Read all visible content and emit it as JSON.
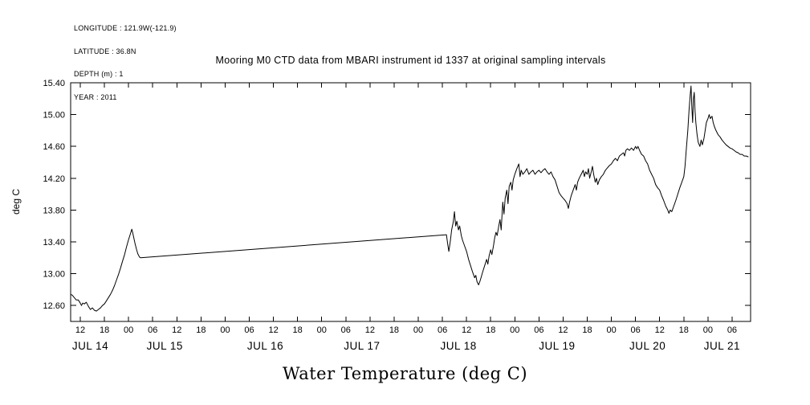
{
  "metadata": {
    "lines": [
      "LONGITUDE : 121.9W(-121.9)",
      "LATITUDE : 36.8N",
      "DEPTH (m) : 1",
      "YEAR : 2011"
    ]
  },
  "title": "Mooring M0 CTD data from MBARI instrument id 1337 at original sampling intervals",
  "bottom_title": "Water Temperature (deg C)",
  "colors": {
    "line": "#000000",
    "background": "#ffffff"
  },
  "chart_data": {
    "type": "line",
    "title": "Mooring M0 CTD data from MBARI instrument id 1337 at original sampling intervals",
    "xlabel": "Water Temperature (deg C)",
    "ylabel": "deg C",
    "x_units": "hours since JUL 14 2011 00:00",
    "xlim_hours": [
      9.6,
      178.6
    ],
    "ylim": [
      12.4,
      15.4
    ],
    "grid": false,
    "legend": "none",
    "y_ticks": [
      12.6,
      13.0,
      13.4,
      13.8,
      14.2,
      14.6,
      15.0,
      15.4
    ],
    "x_ticks": [
      {
        "hour": 12,
        "label": "12"
      },
      {
        "hour": 18,
        "label": "18"
      },
      {
        "hour": 24,
        "label": "00"
      },
      {
        "hour": 30,
        "label": "06"
      },
      {
        "hour": 36,
        "label": "12"
      },
      {
        "hour": 42,
        "label": "18"
      },
      {
        "hour": 48,
        "label": "00"
      },
      {
        "hour": 54,
        "label": "06"
      },
      {
        "hour": 60,
        "label": "12"
      },
      {
        "hour": 66,
        "label": "18"
      },
      {
        "hour": 72,
        "label": "00"
      },
      {
        "hour": 78,
        "label": "06"
      },
      {
        "hour": 84,
        "label": "12"
      },
      {
        "hour": 90,
        "label": "18"
      },
      {
        "hour": 96,
        "label": "00"
      },
      {
        "hour": 102,
        "label": "06"
      },
      {
        "hour": 108,
        "label": "12"
      },
      {
        "hour": 114,
        "label": "18"
      },
      {
        "hour": 120,
        "label": "00"
      },
      {
        "hour": 126,
        "label": "06"
      },
      {
        "hour": 132,
        "label": "12"
      },
      {
        "hour": 138,
        "label": "18"
      },
      {
        "hour": 144,
        "label": "00"
      },
      {
        "hour": 150,
        "label": "06"
      },
      {
        "hour": 156,
        "label": "12"
      },
      {
        "hour": 162,
        "label": "18"
      },
      {
        "hour": 168,
        "label": "00"
      },
      {
        "hour": 174,
        "label": "06"
      }
    ],
    "day_labels": [
      {
        "label": "JUL 14",
        "center_hour": 14.5
      },
      {
        "label": "JUL 15",
        "center_hour": 33
      },
      {
        "label": "JUL 16",
        "center_hour": 58
      },
      {
        "label": "JUL 17",
        "center_hour": 82
      },
      {
        "label": "JUL 18",
        "center_hour": 106
      },
      {
        "label": "JUL 19",
        "center_hour": 130.5
      },
      {
        "label": "JUL 20",
        "center_hour": 153
      },
      {
        "label": "JUL 21",
        "center_hour": 171.5
      }
    ],
    "series": [
      {
        "name": "water_temperature_deg_C",
        "note": "straight segment between hours 27 and 103 is a data gap",
        "points": [
          [
            9.6,
            12.74
          ],
          [
            10,
            12.73
          ],
          [
            10.5,
            12.7
          ],
          [
            11,
            12.67
          ],
          [
            11.5,
            12.67
          ],
          [
            12,
            12.63
          ],
          [
            12.3,
            12.6
          ],
          [
            12.6,
            12.63
          ],
          [
            13,
            12.62
          ],
          [
            13.5,
            12.64
          ],
          [
            14,
            12.59
          ],
          [
            14.5,
            12.55
          ],
          [
            15,
            12.57
          ],
          [
            15.5,
            12.54
          ],
          [
            16,
            12.53
          ],
          [
            16.5,
            12.55
          ],
          [
            17,
            12.57
          ],
          [
            17.5,
            12.6
          ],
          [
            18,
            12.62
          ],
          [
            18.5,
            12.66
          ],
          [
            19,
            12.7
          ],
          [
            19.5,
            12.74
          ],
          [
            20,
            12.79
          ],
          [
            20.5,
            12.85
          ],
          [
            21,
            12.92
          ],
          [
            21.5,
            12.99
          ],
          [
            22,
            13.07
          ],
          [
            22.5,
            13.16
          ],
          [
            23,
            13.24
          ],
          [
            23.5,
            13.34
          ],
          [
            24,
            13.43
          ],
          [
            24.5,
            13.51
          ],
          [
            24.8,
            13.56
          ],
          [
            25,
            13.52
          ],
          [
            25.3,
            13.45
          ],
          [
            25.6,
            13.38
          ],
          [
            26,
            13.3
          ],
          [
            26.3,
            13.25
          ],
          [
            26.7,
            13.21
          ],
          [
            27,
            13.2
          ],
          [
            103,
            13.49
          ],
          [
            103.3,
            13.38
          ],
          [
            103.6,
            13.28
          ],
          [
            104,
            13.42
          ],
          [
            104.3,
            13.55
          ],
          [
            104.7,
            13.65
          ],
          [
            105,
            13.78
          ],
          [
            105.3,
            13.6
          ],
          [
            105.6,
            13.66
          ],
          [
            106,
            13.55
          ],
          [
            106.3,
            13.6
          ],
          [
            106.7,
            13.48
          ],
          [
            107,
            13.42
          ],
          [
            107.5,
            13.35
          ],
          [
            108,
            13.28
          ],
          [
            108.5,
            13.18
          ],
          [
            109,
            13.1
          ],
          [
            109.5,
            13.02
          ],
          [
            110,
            12.95
          ],
          [
            110.3,
            12.98
          ],
          [
            110.6,
            12.9
          ],
          [
            111,
            12.86
          ],
          [
            111.3,
            12.9
          ],
          [
            111.6,
            12.95
          ],
          [
            112,
            13.02
          ],
          [
            112.5,
            13.1
          ],
          [
            113,
            13.18
          ],
          [
            113.3,
            13.12
          ],
          [
            113.6,
            13.22
          ],
          [
            114,
            13.3
          ],
          [
            114.3,
            13.24
          ],
          [
            114.7,
            13.35
          ],
          [
            115,
            13.45
          ],
          [
            115.3,
            13.52
          ],
          [
            115.6,
            13.48
          ],
          [
            116,
            13.6
          ],
          [
            116.3,
            13.68
          ],
          [
            116.6,
            13.55
          ],
          [
            117,
            13.9
          ],
          [
            117.3,
            13.75
          ],
          [
            117.6,
            13.95
          ],
          [
            118,
            14.05
          ],
          [
            118.3,
            13.88
          ],
          [
            118.6,
            14.1
          ],
          [
            119,
            14.15
          ],
          [
            119.3,
            14.05
          ],
          [
            119.6,
            14.18
          ],
          [
            120,
            14.25
          ],
          [
            120.5,
            14.32
          ],
          [
            121,
            14.38
          ],
          [
            121.3,
            14.22
          ],
          [
            121.6,
            14.3
          ],
          [
            122,
            14.25
          ],
          [
            122.5,
            14.28
          ],
          [
            123,
            14.32
          ],
          [
            123.5,
            14.25
          ],
          [
            124,
            14.28
          ],
          [
            124.5,
            14.3
          ],
          [
            125,
            14.25
          ],
          [
            125.5,
            14.28
          ],
          [
            126,
            14.3
          ],
          [
            126.5,
            14.27
          ],
          [
            127,
            14.3
          ],
          [
            127.5,
            14.32
          ],
          [
            128,
            14.28
          ],
          [
            128.5,
            14.25
          ],
          [
            129,
            14.28
          ],
          [
            129.5,
            14.22
          ],
          [
            130,
            14.18
          ],
          [
            130.5,
            14.1
          ],
          [
            131,
            14.02
          ],
          [
            131.5,
            13.98
          ],
          [
            132,
            13.95
          ],
          [
            132.5,
            13.92
          ],
          [
            133,
            13.88
          ],
          [
            133.3,
            13.82
          ],
          [
            133.6,
            13.9
          ],
          [
            134,
            13.98
          ],
          [
            134.5,
            14.05
          ],
          [
            135,
            14.12
          ],
          [
            135.3,
            14.05
          ],
          [
            135.6,
            14.15
          ],
          [
            136,
            14.2
          ],
          [
            136.5,
            14.25
          ],
          [
            137,
            14.3
          ],
          [
            137.3,
            14.22
          ],
          [
            137.6,
            14.28
          ],
          [
            138,
            14.25
          ],
          [
            138.3,
            14.32
          ],
          [
            138.6,
            14.2
          ],
          [
            139,
            14.28
          ],
          [
            139.3,
            14.35
          ],
          [
            139.6,
            14.25
          ],
          [
            140,
            14.15
          ],
          [
            140.3,
            14.2
          ],
          [
            140.6,
            14.12
          ],
          [
            141,
            14.18
          ],
          [
            141.5,
            14.22
          ],
          [
            142,
            14.25
          ],
          [
            142.5,
            14.3
          ],
          [
            143,
            14.33
          ],
          [
            143.5,
            14.36
          ],
          [
            144,
            14.38
          ],
          [
            144.5,
            14.42
          ],
          [
            145,
            14.45
          ],
          [
            145.5,
            14.42
          ],
          [
            146,
            14.48
          ],
          [
            146.5,
            14.5
          ],
          [
            147,
            14.52
          ],
          [
            147.3,
            14.48
          ],
          [
            147.6,
            14.55
          ],
          [
            148,
            14.57
          ],
          [
            148.5,
            14.55
          ],
          [
            149,
            14.58
          ],
          [
            149.5,
            14.55
          ],
          [
            150,
            14.6
          ],
          [
            150.3,
            14.57
          ],
          [
            150.6,
            14.6
          ],
          [
            151,
            14.55
          ],
          [
            151.5,
            14.5
          ],
          [
            152,
            14.48
          ],
          [
            152.5,
            14.42
          ],
          [
            153,
            14.38
          ],
          [
            153.5,
            14.3
          ],
          [
            154,
            14.25
          ],
          [
            154.5,
            14.2
          ],
          [
            155,
            14.12
          ],
          [
            155.5,
            14.08
          ],
          [
            156,
            14.05
          ],
          [
            156.5,
            13.98
          ],
          [
            157,
            13.92
          ],
          [
            157.5,
            13.85
          ],
          [
            158,
            13.8
          ],
          [
            158.3,
            13.76
          ],
          [
            158.6,
            13.8
          ],
          [
            159,
            13.78
          ],
          [
            159.5,
            13.85
          ],
          [
            160,
            13.92
          ],
          [
            160.5,
            14.0
          ],
          [
            161,
            14.08
          ],
          [
            161.5,
            14.15
          ],
          [
            162,
            14.22
          ],
          [
            162.3,
            14.35
          ],
          [
            162.6,
            14.55
          ],
          [
            163,
            14.8
          ],
          [
            163.3,
            15.05
          ],
          [
            163.6,
            15.25
          ],
          [
            163.8,
            15.36
          ],
          [
            164,
            15.1
          ],
          [
            164.2,
            14.9
          ],
          [
            164.4,
            15.2
          ],
          [
            164.6,
            15.28
          ],
          [
            164.8,
            15.05
          ],
          [
            165,
            14.9
          ],
          [
            165.3,
            14.75
          ],
          [
            165.6,
            14.65
          ],
          [
            166,
            14.6
          ],
          [
            166.3,
            14.68
          ],
          [
            166.6,
            14.62
          ],
          [
            167,
            14.7
          ],
          [
            167.3,
            14.8
          ],
          [
            167.6,
            14.9
          ],
          [
            168,
            14.95
          ],
          [
            168.3,
            15.0
          ],
          [
            168.6,
            14.95
          ],
          [
            169,
            14.98
          ],
          [
            169.3,
            14.9
          ],
          [
            169.6,
            14.85
          ],
          [
            170,
            14.8
          ],
          [
            170.5,
            14.75
          ],
          [
            171,
            14.72
          ],
          [
            171.5,
            14.68
          ],
          [
            172,
            14.65
          ],
          [
            172.5,
            14.62
          ],
          [
            173,
            14.6
          ],
          [
            173.5,
            14.58
          ],
          [
            174,
            14.57
          ],
          [
            174.5,
            14.55
          ],
          [
            175,
            14.53
          ],
          [
            175.5,
            14.52
          ],
          [
            176,
            14.5
          ],
          [
            176.5,
            14.5
          ],
          [
            177,
            14.48
          ],
          [
            177.5,
            14.48
          ],
          [
            178,
            14.47
          ]
        ]
      }
    ]
  }
}
